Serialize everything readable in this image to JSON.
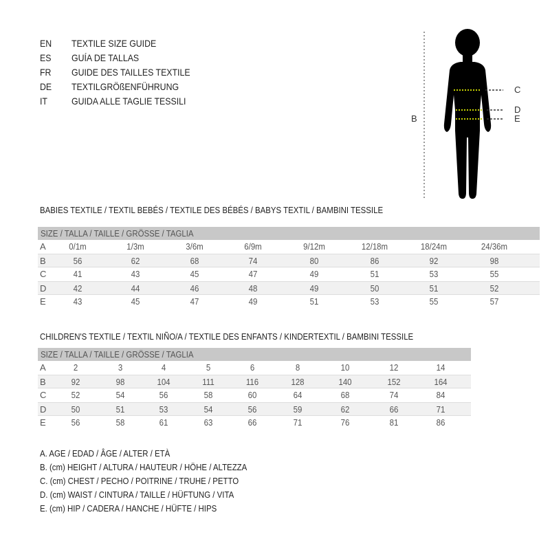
{
  "title_lines": [
    {
      "code": "EN",
      "text": "TEXTILE SIZE GUIDE"
    },
    {
      "code": "ES",
      "text": "GUÍA DE TALLAS"
    },
    {
      "code": "FR",
      "text": "GUIDE DES TAILLES TEXTILE"
    },
    {
      "code": "DE",
      "text": "TEXTILGRÖßENFÜHRUNG"
    },
    {
      "code": "IT",
      "text": "GUIDA ALLE TAGLIE TESSILI"
    }
  ],
  "figure": {
    "labels": {
      "b": "B",
      "c": "C",
      "d": "D",
      "e": "E"
    },
    "measure_line_color": "#c8d400"
  },
  "babies": {
    "title": "BABIES TEXTILE / TEXTIL BEBÉS / TEXTILE DES BÉBÉS / BABYS TEXTIL  / BAMBINI TESSILE",
    "header": "SIZE / TALLA / TAILLE / GRÖSSE / TAGLIA",
    "rows": [
      {
        "label": "A",
        "values": [
          "0/1m",
          "1/3m",
          "3/6m",
          "6/9m",
          "9/12m",
          "12/18m",
          "18/24m",
          "24/36m"
        ]
      },
      {
        "label": "B",
        "values": [
          "56",
          "62",
          "68",
          "74",
          "80",
          "86",
          "92",
          "98"
        ]
      },
      {
        "label": "C",
        "values": [
          "41",
          "43",
          "45",
          "47",
          "49",
          "51",
          "53",
          "55"
        ]
      },
      {
        "label": "D",
        "values": [
          "42",
          "44",
          "46",
          "48",
          "49",
          "50",
          "51",
          "52"
        ]
      },
      {
        "label": "E",
        "values": [
          "43",
          "45",
          "47",
          "49",
          "51",
          "53",
          "55",
          "57"
        ]
      }
    ]
  },
  "children": {
    "title": "CHILDREN'S TEXTILE / TEXTIL NIÑO/A / TEXTILE DES ENFANTS / KINDERTEXTIL / BAMBINI TESSILE",
    "header": "SIZE / TALLA / TAILLE / GRÖSSE / TAGLIA",
    "rows": [
      {
        "label": "A",
        "values": [
          "2",
          "3",
          "4",
          "5",
          "6",
          "8",
          "10",
          "12",
          "14"
        ]
      },
      {
        "label": "B",
        "values": [
          "92",
          "98",
          "104",
          "111",
          "116",
          "128",
          "140",
          "152",
          "164"
        ]
      },
      {
        "label": "C",
        "values": [
          "52",
          "54",
          "56",
          "58",
          "60",
          "64",
          "68",
          "74",
          "84"
        ]
      },
      {
        "label": "D",
        "values": [
          "50",
          "51",
          "53",
          "54",
          "56",
          "59",
          "62",
          "66",
          "71"
        ]
      },
      {
        "label": "E",
        "values": [
          "56",
          "58",
          "61",
          "63",
          "66",
          "71",
          "76",
          "81",
          "86"
        ]
      }
    ]
  },
  "legend": [
    "A. AGE / EDAD / ÂGE / ALTER / ETÀ",
    "B. (cm) HEIGHT / ALTURA / HAUTEUR / HÖHE / ALTEZZA",
    "C. (cm) CHEST / PECHO / POITRINE / TRUHE / PETTO",
    "D. (cm) WAIST / CINTURA / TAILLE / HÜFTUNG / VITA",
    "E. (cm) HIP / CADERA / HANCHE / HÜFTE / HIPS"
  ]
}
